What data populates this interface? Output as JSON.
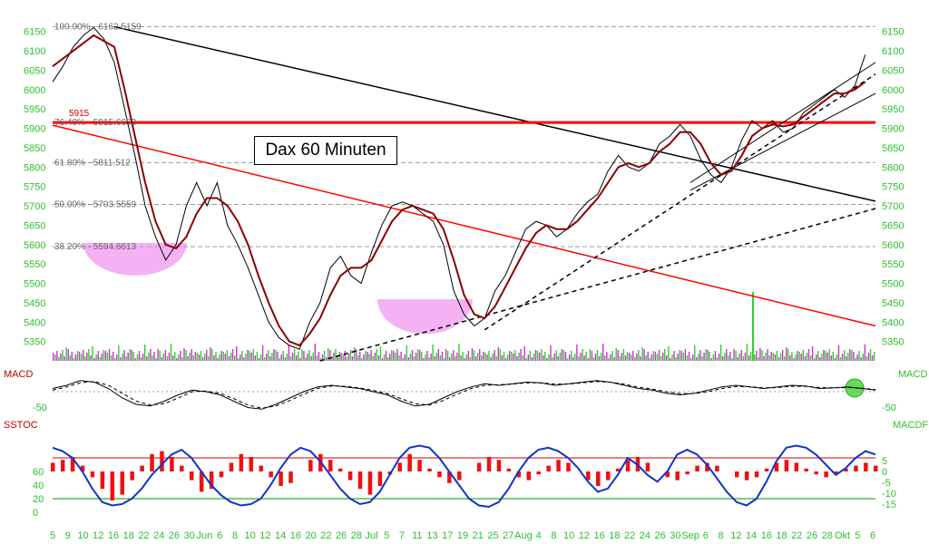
{
  "chart_data": {
    "type": "line",
    "title": "Dax 60 Minuten",
    "instrument": "DAX",
    "price_axis": {
      "ylim": [
        5300,
        6175
      ],
      "ticks": [
        5350,
        5400,
        5450,
        5500,
        5550,
        5600,
        5650,
        5700,
        5750,
        5800,
        5850,
        5900,
        5950,
        6000,
        6050,
        6100,
        6150
      ]
    },
    "fib_levels": [
      {
        "label": "100.00% - 6162.5159",
        "value": 6162.5159
      },
      {
        "label": "76.40% - 5915.6653",
        "value": 5915.6653
      },
      {
        "label": "61.80% - 5811.512",
        "value": 5811.512
      },
      {
        "label": "50.00% - 5703.5559",
        "value": 5703.5559
      },
      {
        "label": "38.20% - 5594.6613",
        "value": 5594.6613
      }
    ],
    "horizontal_marker": {
      "label": "5915",
      "value": 5915
    },
    "x_axis_labels": [
      "5",
      "9",
      "10",
      "12",
      "16",
      "18",
      "22",
      "24",
      "26",
      "30",
      "Jun",
      "6",
      "8",
      "10",
      "12",
      "14",
      "16",
      "20",
      "22",
      "26",
      "28",
      "Jul",
      "5",
      "7",
      "11",
      "13",
      "17",
      "19",
      "21",
      "25",
      "27",
      "Aug",
      "4",
      "8",
      "10",
      "12",
      "16",
      "18",
      "22",
      "24",
      "26",
      "30",
      "Sep",
      "6",
      "8",
      "12",
      "14",
      "16",
      "18",
      "22",
      "26",
      "28",
      "Okt",
      "5",
      "6"
    ],
    "series": [
      {
        "name": "DAX",
        "points": [
          [
            0,
            6020
          ],
          [
            2,
            6060
          ],
          [
            4,
            6110
          ],
          [
            6,
            6140
          ],
          [
            8,
            6160
          ],
          [
            10,
            6130
          ],
          [
            12,
            6070
          ],
          [
            14,
            5950
          ],
          [
            16,
            5830
          ],
          [
            18,
            5700
          ],
          [
            20,
            5620
          ],
          [
            22,
            5560
          ],
          [
            24,
            5600
          ],
          [
            26,
            5700
          ],
          [
            28,
            5760
          ],
          [
            30,
            5700
          ],
          [
            32,
            5760
          ],
          [
            34,
            5650
          ],
          [
            36,
            5600
          ],
          [
            38,
            5540
          ],
          [
            40,
            5470
          ],
          [
            42,
            5400
          ],
          [
            44,
            5360
          ],
          [
            46,
            5340
          ],
          [
            48,
            5330
          ],
          [
            50,
            5400
          ],
          [
            52,
            5450
          ],
          [
            54,
            5540
          ],
          [
            56,
            5570
          ],
          [
            58,
            5520
          ],
          [
            60,
            5500
          ],
          [
            62,
            5580
          ],
          [
            64,
            5650
          ],
          [
            66,
            5700
          ],
          [
            68,
            5710
          ],
          [
            70,
            5700
          ],
          [
            72,
            5680
          ],
          [
            74,
            5660
          ],
          [
            76,
            5600
          ],
          [
            78,
            5480
          ],
          [
            80,
            5420
          ],
          [
            82,
            5390
          ],
          [
            84,
            5410
          ],
          [
            86,
            5480
          ],
          [
            88,
            5520
          ],
          [
            90,
            5580
          ],
          [
            92,
            5640
          ],
          [
            94,
            5660
          ],
          [
            96,
            5650
          ],
          [
            98,
            5620
          ],
          [
            100,
            5640
          ],
          [
            102,
            5680
          ],
          [
            104,
            5710
          ],
          [
            106,
            5730
          ],
          [
            108,
            5790
          ],
          [
            110,
            5830
          ],
          [
            112,
            5800
          ],
          [
            114,
            5790
          ],
          [
            116,
            5810
          ],
          [
            118,
            5860
          ],
          [
            120,
            5880
          ],
          [
            122,
            5910
          ],
          [
            124,
            5880
          ],
          [
            126,
            5820
          ],
          [
            128,
            5780
          ],
          [
            130,
            5760
          ],
          [
            132,
            5800
          ],
          [
            134,
            5870
          ],
          [
            136,
            5920
          ],
          [
            138,
            5900
          ],
          [
            140,
            5920
          ],
          [
            142,
            5890
          ],
          [
            144,
            5900
          ],
          [
            146,
            5940
          ],
          [
            148,
            5960
          ],
          [
            150,
            5980
          ],
          [
            152,
            6000
          ],
          [
            154,
            5980
          ],
          [
            156,
            6010
          ],
          [
            158,
            6090
          ]
        ]
      },
      {
        "name": "MA",
        "points": [
          [
            0,
            6060
          ],
          [
            4,
            6100
          ],
          [
            8,
            6140
          ],
          [
            12,
            6110
          ],
          [
            14,
            6000
          ],
          [
            16,
            5880
          ],
          [
            18,
            5760
          ],
          [
            20,
            5660
          ],
          [
            22,
            5600
          ],
          [
            24,
            5590
          ],
          [
            26,
            5620
          ],
          [
            28,
            5680
          ],
          [
            30,
            5720
          ],
          [
            32,
            5720
          ],
          [
            34,
            5700
          ],
          [
            36,
            5660
          ],
          [
            38,
            5600
          ],
          [
            40,
            5520
          ],
          [
            42,
            5450
          ],
          [
            44,
            5390
          ],
          [
            46,
            5350
          ],
          [
            48,
            5340
          ],
          [
            50,
            5370
          ],
          [
            52,
            5410
          ],
          [
            54,
            5470
          ],
          [
            56,
            5520
          ],
          [
            58,
            5540
          ],
          [
            60,
            5540
          ],
          [
            62,
            5560
          ],
          [
            64,
            5610
          ],
          [
            66,
            5660
          ],
          [
            68,
            5690
          ],
          [
            70,
            5700
          ],
          [
            72,
            5690
          ],
          [
            74,
            5680
          ],
          [
            76,
            5640
          ],
          [
            78,
            5560
          ],
          [
            80,
            5470
          ],
          [
            82,
            5420
          ],
          [
            84,
            5410
          ],
          [
            86,
            5440
          ],
          [
            88,
            5490
          ],
          [
            90,
            5540
          ],
          [
            92,
            5590
          ],
          [
            94,
            5630
          ],
          [
            96,
            5650
          ],
          [
            98,
            5640
          ],
          [
            100,
            5640
          ],
          [
            102,
            5660
          ],
          [
            104,
            5690
          ],
          [
            106,
            5720
          ],
          [
            108,
            5760
          ],
          [
            110,
            5800
          ],
          [
            112,
            5810
          ],
          [
            114,
            5800
          ],
          [
            116,
            5810
          ],
          [
            118,
            5840
          ],
          [
            120,
            5860
          ],
          [
            122,
            5890
          ],
          [
            124,
            5890
          ],
          [
            126,
            5860
          ],
          [
            128,
            5810
          ],
          [
            130,
            5780
          ],
          [
            132,
            5790
          ],
          [
            134,
            5830
          ],
          [
            136,
            5880
          ],
          [
            138,
            5900
          ],
          [
            140,
            5910
          ],
          [
            142,
            5905
          ],
          [
            144,
            5910
          ],
          [
            146,
            5930
          ],
          [
            148,
            5950
          ],
          [
            150,
            5970
          ],
          [
            152,
            5990
          ],
          [
            154,
            5990
          ],
          [
            156,
            6000
          ],
          [
            158,
            6020
          ]
        ]
      }
    ],
    "trendlines": [
      {
        "color": "#ff0000",
        "from": [
          0,
          5908
        ],
        "to": [
          160,
          5390
        ]
      },
      {
        "color": "#000000",
        "from": [
          12,
          6162
        ],
        "to": [
          160,
          5712
        ]
      },
      {
        "color": "#ff0000",
        "from": [
          0,
          5915
        ],
        "to": [
          160,
          5915
        ],
        "width": 3
      }
    ],
    "support_lines": [
      {
        "style": "dashed",
        "from": [
          52,
          5300
        ],
        "to": [
          160,
          5693
        ]
      },
      {
        "style": "dashed",
        "from": [
          84,
          5380
        ],
        "to": [
          160,
          6040
        ]
      },
      {
        "style": "solid",
        "from": [
          124,
          5760
        ],
        "to": [
          160,
          6070
        ]
      },
      {
        "style": "solid",
        "from": [
          124,
          5740
        ],
        "to": [
          160,
          5990
        ]
      }
    ],
    "macd": {
      "label_left": "MACD",
      "label_right": "MACD",
      "tick_left": "-50",
      "tick_right": "-50",
      "macd": [
        10,
        20,
        35,
        30,
        10,
        -20,
        -40,
        -45,
        -30,
        -10,
        5,
        0,
        -10,
        -30,
        -50,
        -55,
        -40,
        -20,
        0,
        15,
        20,
        15,
        10,
        0,
        -10,
        -30,
        -45,
        -40,
        -20,
        0,
        15,
        25,
        20,
        25,
        30,
        28,
        20,
        25,
        30,
        35,
        30,
        20,
        10,
        5,
        -5,
        -10,
        -5,
        5,
        15,
        20,
        15,
        10,
        15,
        20,
        18,
        10,
        12,
        15,
        10,
        5
      ],
      "signal": [
        5,
        15,
        28,
        32,
        20,
        -5,
        -30,
        -42,
        -38,
        -20,
        0,
        2,
        -5,
        -22,
        -42,
        -52,
        -45,
        -28,
        -8,
        10,
        18,
        17,
        12,
        4,
        -6,
        -22,
        -38,
        -42,
        -28,
        -8,
        10,
        20,
        22,
        24,
        28,
        28,
        24,
        24,
        28,
        32,
        30,
        24,
        14,
        8,
        0,
        -6,
        -6,
        0,
        10,
        16,
        16,
        12,
        13,
        17,
        17,
        13,
        12,
        13,
        11,
        7
      ]
    },
    "sstoc": {
      "label_left": "SSTOC",
      "label_right": "MACDF",
      "ticks_left": [
        "60",
        "40",
        "20",
        "0"
      ],
      "ticks_right": [
        "5",
        "0",
        "-5",
        "-10",
        "-15"
      ],
      "overbought": 80,
      "oversold": 20,
      "stoch": [
        95,
        90,
        80,
        60,
        35,
        15,
        10,
        12,
        20,
        35,
        55,
        70,
        85,
        92,
        80,
        60,
        40,
        25,
        15,
        10,
        12,
        20,
        40,
        65,
        85,
        95,
        90,
        75,
        55,
        35,
        20,
        12,
        15,
        30,
        55,
        80,
        95,
        98,
        95,
        80,
        60,
        40,
        20,
        10,
        8,
        15,
        35,
        60,
        80,
        92,
        95,
        90,
        80,
        65,
        45,
        30,
        35,
        55,
        80,
        70,
        55,
        45,
        60,
        85,
        92,
        85,
        70,
        50,
        30,
        15,
        10,
        20,
        45,
        75,
        95,
        98,
        95,
        85,
        70,
        55,
        65,
        80,
        90,
        85
      ],
      "histogram": [
        3,
        4,
        5,
        2,
        -2,
        -6,
        -10,
        -8,
        -3,
        2,
        6,
        7,
        5,
        2,
        -3,
        -7,
        -6,
        -2,
        3,
        6,
        5,
        2,
        -2,
        -5,
        -4,
        0,
        4,
        6,
        4,
        1,
        -3,
        -6,
        -8,
        -5,
        -1,
        3,
        6,
        4,
        1,
        -2,
        -4,
        -3,
        0,
        3,
        5,
        4,
        1,
        -2,
        -3,
        -1,
        2,
        4,
        3,
        0,
        -3,
        -5,
        -3,
        1,
        4,
        5,
        3,
        0,
        -2,
        -3,
        -1,
        2,
        3,
        2,
        0,
        -2,
        -3,
        -2,
        1,
        3,
        4,
        3,
        1,
        -1,
        -2,
        -1,
        1,
        2,
        3,
        2
      ]
    }
  }
}
